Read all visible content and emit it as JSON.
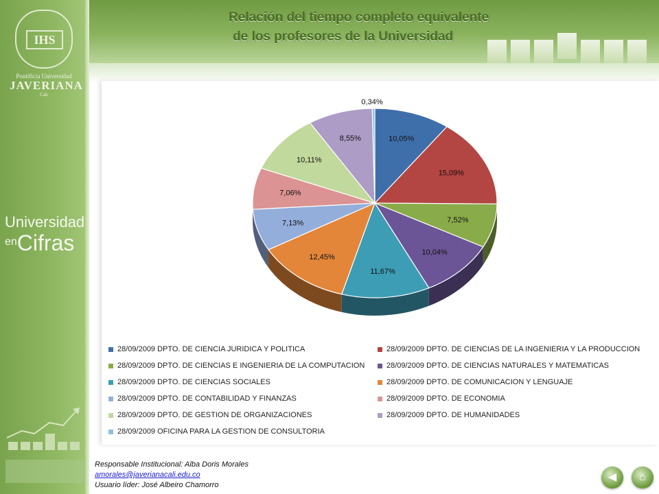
{
  "header": {
    "title_line1": "Relación del tiempo completo equivalente",
    "title_line2": "de los profesores de la Universidad"
  },
  "logo": {
    "monogram": "IHS",
    "line1": "Pontificia Universidad",
    "line2": "JAVERIANA",
    "line3": "Cali"
  },
  "sidebar": {
    "brand_line1": "Universidad",
    "brand_line2a": "en",
    "brand_line2b": "Cifras"
  },
  "chart_data": {
    "type": "pie",
    "title": "",
    "series": [
      {
        "name": "28/09/2009 DPTO. DE CIENCIA JURIDICA Y POLITICA",
        "value": 10.05,
        "label": "10,05%",
        "color": "#3f6faa"
      },
      {
        "name": "28/09/2009 DPTO. DE CIENCIAS DE LA INGENIERIA Y LA PRODUCCION",
        "value": 15.09,
        "label": "15,09%",
        "color": "#b34542"
      },
      {
        "name": "28/09/2009 DPTO. DE CIENCIAS E INGENIERIA DE LA COMPUTACION",
        "value": 7.52,
        "label": "7,52%",
        "color": "#8aab4a"
      },
      {
        "name": "28/09/2009 DPTO. DE CIENCIAS NATURALES Y MATEMATICAS",
        "value": 10.04,
        "label": "10,04%",
        "color": "#6b5596"
      },
      {
        "name": "28/09/2009 DPTO. DE CIENCIAS SOCIALES",
        "value": 11.67,
        "label": "11,67%",
        "color": "#3d9db5"
      },
      {
        "name": "28/09/2009 DPTO. DE COMUNICACION Y LENGUAJE",
        "value": 12.45,
        "label": "12,45%",
        "color": "#e3863a"
      },
      {
        "name": "28/09/2009 DPTO. DE CONTABILIDAD Y FINANZAS",
        "value": 7.13,
        "label": "7,13%",
        "color": "#94aedb"
      },
      {
        "name": "28/09/2009 DPTO. DE ECONOMIA",
        "value": 7.06,
        "label": "7,06%",
        "color": "#db9493"
      },
      {
        "name": "28/09/2009 DPTO. DE GESTION DE ORGANIZACIONES",
        "value": 10.11,
        "label": "10,11%",
        "color": "#c1d99c"
      },
      {
        "name": "28/09/2009 DPTO. DE HUMANIDADES",
        "value": 8.55,
        "label": "8,55%",
        "color": "#ac9cc6"
      },
      {
        "name": "28/09/2009 OFICINA PARA LA GESTION DE CONSULTORIA",
        "value": 0.34,
        "label": "0,34%",
        "color": "#8ac4dc"
      }
    ],
    "legend_position": "bottom"
  },
  "footer": {
    "responsable": "Responsable Institucional: Alba Doris Morales",
    "email": "amorales@javerianacali.edu.co",
    "usuario": "Usuario líder: José Albeiro Chamorro"
  },
  "nav": {
    "back_icon": "back-arrow-icon",
    "home_icon": "home-icon"
  }
}
